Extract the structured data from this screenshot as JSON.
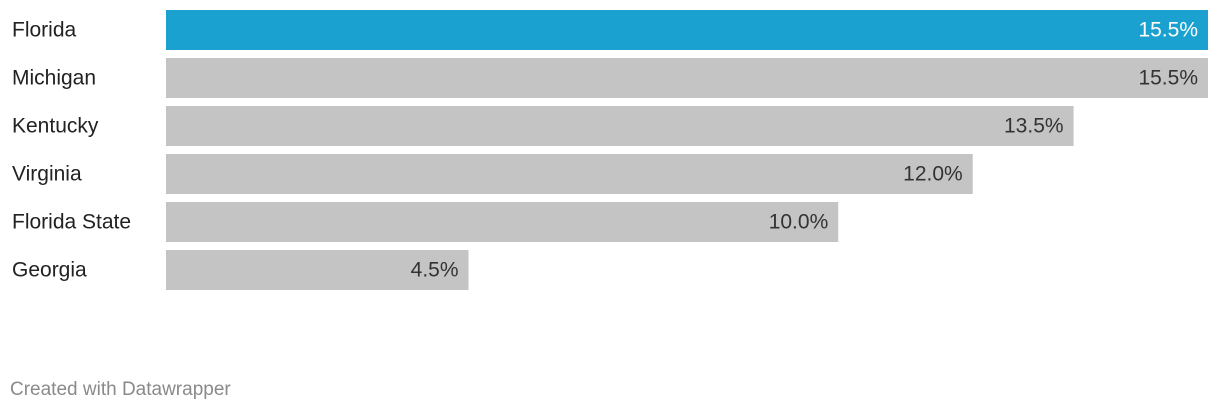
{
  "chart_data": {
    "type": "bar",
    "orientation": "horizontal",
    "categories": [
      "Florida",
      "Michigan",
      "Kentucky",
      "Virginia",
      "Florida State",
      "Georgia"
    ],
    "values": [
      15.5,
      15.5,
      13.5,
      12.0,
      10.0,
      4.5
    ],
    "value_labels": [
      "15.5%",
      "15.5%",
      "13.5%",
      "12.0%",
      "10.0%",
      "4.5%"
    ],
    "colors": [
      "#1aa1cf",
      "#c4c4c4",
      "#c4c4c4",
      "#c4c4c4",
      "#c4c4c4",
      "#c4c4c4"
    ],
    "credit": "Created with Datawrapper"
  }
}
